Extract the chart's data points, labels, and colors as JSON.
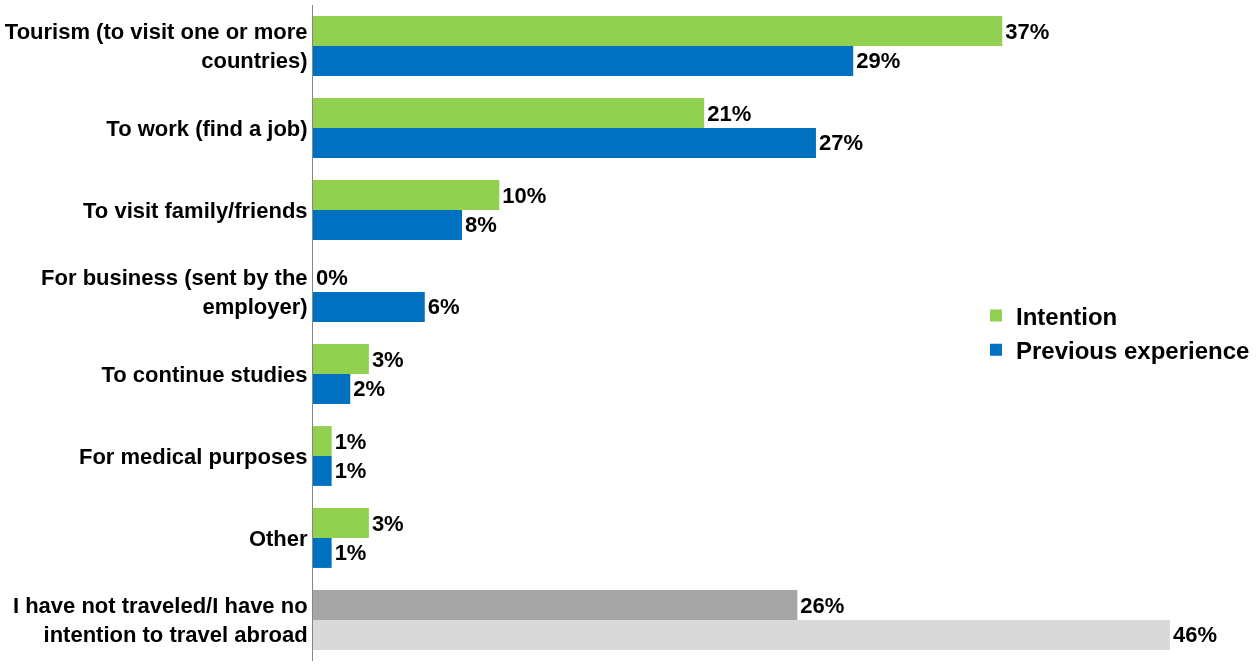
{
  "chart_data": {
    "type": "bar",
    "orientation": "horizontal",
    "categories": [
      "Tourism (to visit one or more countries)",
      "To work (find a job)",
      "To visit family/friends",
      "For business (sent by the employer)",
      "To continue studies",
      "For medical purposes",
      "Other",
      "I have not traveled/I have no intention to travel abroad"
    ],
    "series": [
      {
        "name": "Intention",
        "colors": [
          "#92d050",
          "#92d050",
          "#92d050",
          "#92d050",
          "#92d050",
          "#92d050",
          "#92d050",
          "#a6a6a6"
        ],
        "values": [
          37,
          21,
          10,
          0,
          3,
          1,
          3,
          26
        ],
        "value_labels": [
          "37%",
          "21%",
          "10%",
          "0%",
          "3%",
          "1%",
          "3%",
          "26%"
        ]
      },
      {
        "name": "Previous experience",
        "colors": [
          "#0070c0",
          "#0070c0",
          "#0070c0",
          "#0070c0",
          "#0070c0",
          "#0070c0",
          "#0070c0",
          "#d9d9d9"
        ],
        "values": [
          29,
          27,
          8,
          6,
          2,
          1,
          1,
          46
        ],
        "value_labels": [
          "29%",
          "27%",
          "8%",
          "6%",
          "2%",
          "1%",
          "1%",
          "46%"
        ]
      }
    ],
    "tick_labels": "y",
    "legend": "right"
  }
}
